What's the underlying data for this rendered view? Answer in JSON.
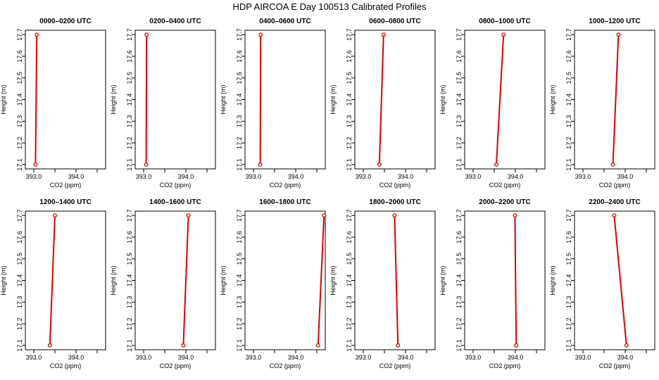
{
  "title": "HDP AIRCOA E  Day 100513  Calibrated Profiles",
  "colors": {
    "series": "#dd0000",
    "axis": "#000000",
    "background": "#ffffff"
  },
  "chart_data": [
    {
      "type": "line",
      "title": "0000–0200 UTC",
      "xlabel": "CO2 (ppm)",
      "ylabel": "Height (m)",
      "xlim": [
        392.8,
        394.7
      ],
      "ylim": [
        17.08,
        17.72
      ],
      "xticks": [
        "393.0",
        "394.0"
      ],
      "yticks": [
        "17.1",
        "17.2",
        "17.3",
        "17.4",
        "17.5",
        "17.6",
        "17.7"
      ],
      "x": [
        393.04,
        393.07
      ],
      "y": [
        17.1,
        17.7
      ],
      "grid": false
    },
    {
      "type": "line",
      "title": "0200–0400 UTC",
      "xlabel": "CO2 (ppm)",
      "ylabel": "Height (m)",
      "xlim": [
        392.8,
        394.7
      ],
      "ylim": [
        17.08,
        17.72
      ],
      "xticks": [
        "393.0",
        "394.0"
      ],
      "yticks": [
        "17.1",
        "17.2",
        "17.3",
        "17.4",
        "17.5",
        "17.6",
        "17.7"
      ],
      "x": [
        393.06,
        393.07
      ],
      "y": [
        17.1,
        17.7
      ],
      "grid": false
    },
    {
      "type": "line",
      "title": "0400–0600 UTC",
      "xlabel": "CO2 (ppm)",
      "ylabel": "Height (m)",
      "xlim": [
        392.8,
        394.7
      ],
      "ylim": [
        17.08,
        17.72
      ],
      "xticks": [
        "393.0",
        "394.0"
      ],
      "yticks": [
        "17.1",
        "17.2",
        "17.3",
        "17.4",
        "17.5",
        "17.6",
        "17.7"
      ],
      "x": [
        393.16,
        393.17
      ],
      "y": [
        17.1,
        17.7
      ],
      "grid": false
    },
    {
      "type": "line",
      "title": "0600–0800 UTC",
      "xlabel": "CO2 (ppm)",
      "ylabel": "Height (m)",
      "xlim": [
        392.8,
        394.7
      ],
      "ylim": [
        17.08,
        17.72
      ],
      "xticks": [
        "393.0",
        "394.0"
      ],
      "yticks": [
        "17.1",
        "17.2",
        "17.3",
        "17.4",
        "17.5",
        "17.6",
        "17.7"
      ],
      "x": [
        393.38,
        393.48
      ],
      "y": [
        17.1,
        17.7
      ],
      "grid": false
    },
    {
      "type": "line",
      "title": "0800–1000 UTC",
      "xlabel": "CO2 (ppm)",
      "ylabel": "Height (m)",
      "xlim": [
        392.8,
        394.7
      ],
      "ylim": [
        17.08,
        17.72
      ],
      "xticks": [
        "393.0",
        "394.0"
      ],
      "yticks": [
        "17.1",
        "17.2",
        "17.3",
        "17.4",
        "17.5",
        "17.6",
        "17.7"
      ],
      "x": [
        393.55,
        393.72
      ],
      "y": [
        17.1,
        17.7
      ],
      "grid": false
    },
    {
      "type": "line",
      "title": "1000–1200 UTC",
      "xlabel": "CO2 (ppm)",
      "ylabel": "Height (m)",
      "xlim": [
        392.8,
        394.7
      ],
      "ylim": [
        17.08,
        17.72
      ],
      "xticks": [
        "393.0",
        "394.0"
      ],
      "yticks": [
        "17.1",
        "17.2",
        "17.3",
        "17.4",
        "17.5",
        "17.6",
        "17.7"
      ],
      "x": [
        393.71,
        393.84
      ],
      "y": [
        17.1,
        17.7
      ],
      "grid": false
    },
    {
      "type": "line",
      "title": "1200–1400 UTC",
      "xlabel": "CO2 (ppm)",
      "ylabel": "Height (m)",
      "xlim": [
        392.8,
        394.7
      ],
      "ylim": [
        17.08,
        17.72
      ],
      "xticks": [
        "393.0",
        "394.0"
      ],
      "yticks": [
        "17.1",
        "17.2",
        "17.3",
        "17.4",
        "17.5",
        "17.6",
        "17.7"
      ],
      "x": [
        393.38,
        393.5
      ],
      "y": [
        17.1,
        17.7
      ],
      "grid": false
    },
    {
      "type": "line",
      "title": "1400–1600 UTC",
      "xlabel": "CO2 (ppm)",
      "ylabel": "Height (m)",
      "xlim": [
        392.8,
        394.7
      ],
      "ylim": [
        17.08,
        17.72
      ],
      "xticks": [
        "393.0",
        "394.0"
      ],
      "yticks": [
        "17.1",
        "17.2",
        "17.3",
        "17.4",
        "17.5",
        "17.6",
        "17.7"
      ],
      "x": [
        393.94,
        394.06
      ],
      "y": [
        17.1,
        17.7
      ],
      "grid": false
    },
    {
      "type": "line",
      "title": "1600–1800 UTC",
      "xlabel": "CO2 (ppm)",
      "ylabel": "Height (m)",
      "xlim": [
        392.8,
        394.7
      ],
      "ylim": [
        17.08,
        17.72
      ],
      "xticks": [
        "393.0",
        "394.0"
      ],
      "yticks": [
        "17.1",
        "17.2",
        "17.3",
        "17.4",
        "17.5",
        "17.6",
        "17.7"
      ],
      "x": [
        394.53,
        394.67
      ],
      "y": [
        17.1,
        17.7
      ],
      "grid": false
    },
    {
      "type": "line",
      "title": "1800–2000 UTC",
      "xlabel": "CO2 (ppm)",
      "ylabel": "Height (m)",
      "xlim": [
        392.8,
        394.7
      ],
      "ylim": [
        17.08,
        17.72
      ],
      "xticks": [
        "393.0",
        "394.0"
      ],
      "yticks": [
        "17.1",
        "17.2",
        "17.3",
        "17.4",
        "17.5",
        "17.6",
        "17.7"
      ],
      "x": [
        393.82,
        393.74
      ],
      "y": [
        17.1,
        17.7
      ],
      "grid": false
    },
    {
      "type": "line",
      "title": "2000–2200 UTC",
      "xlabel": "CO2 (ppm)",
      "ylabel": "Height (m)",
      "xlim": [
        392.8,
        394.7
      ],
      "ylim": [
        17.08,
        17.72
      ],
      "xticks": [
        "393.0",
        "394.0"
      ],
      "yticks": [
        "17.1",
        "17.2",
        "17.3",
        "17.4",
        "17.5",
        "17.6",
        "17.7"
      ],
      "x": [
        394.02,
        393.99
      ],
      "y": [
        17.1,
        17.7
      ],
      "grid": false
    },
    {
      "type": "line",
      "title": "2200–2400 UTC",
      "xlabel": "CO2 (ppm)",
      "ylabel": "Height (m)",
      "xlim": [
        392.8,
        394.7
      ],
      "ylim": [
        17.08,
        17.72
      ],
      "xticks": [
        "393.0",
        "394.0"
      ],
      "yticks": [
        "17.1",
        "17.2",
        "17.3",
        "17.4",
        "17.5",
        "17.6",
        "17.7"
      ],
      "x": [
        394.03,
        393.74
      ],
      "y": [
        17.1,
        17.7
      ],
      "grid": false
    }
  ]
}
